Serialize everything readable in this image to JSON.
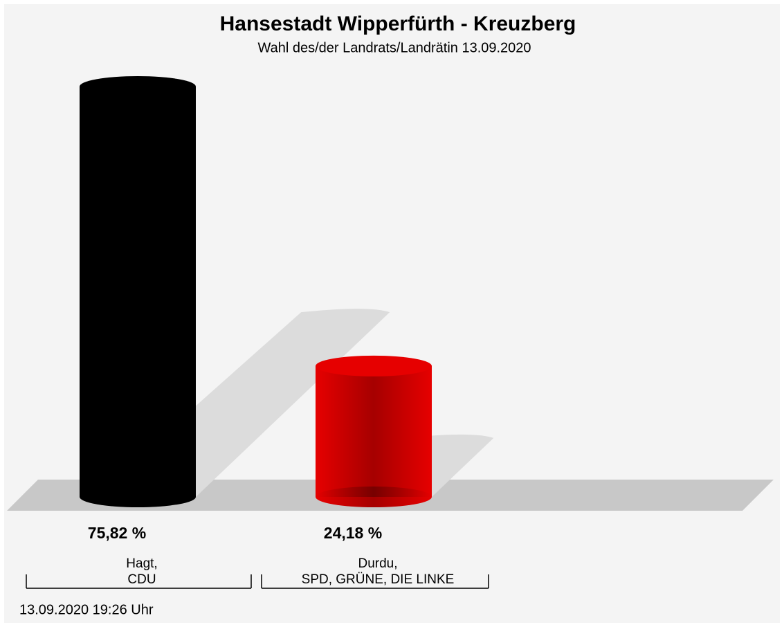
{
  "chart_data": {
    "type": "bar",
    "title": "Hansestadt Wipperfürth - Kreuzberg",
    "subtitle": "Wahl des/der Landrats/Landrätin 13.09.2020",
    "categories": [
      "Hagt,\nCDU",
      "Durdu,\nSPD, GRÜNE, DIE LINKE"
    ],
    "values": [
      75.82,
      24.18
    ],
    "value_labels": [
      "75,82 %",
      "24,18 %"
    ],
    "colors": [
      "#000000",
      "#e60000"
    ],
    "annotation": "13.09.2020 19:26 Uhr"
  }
}
